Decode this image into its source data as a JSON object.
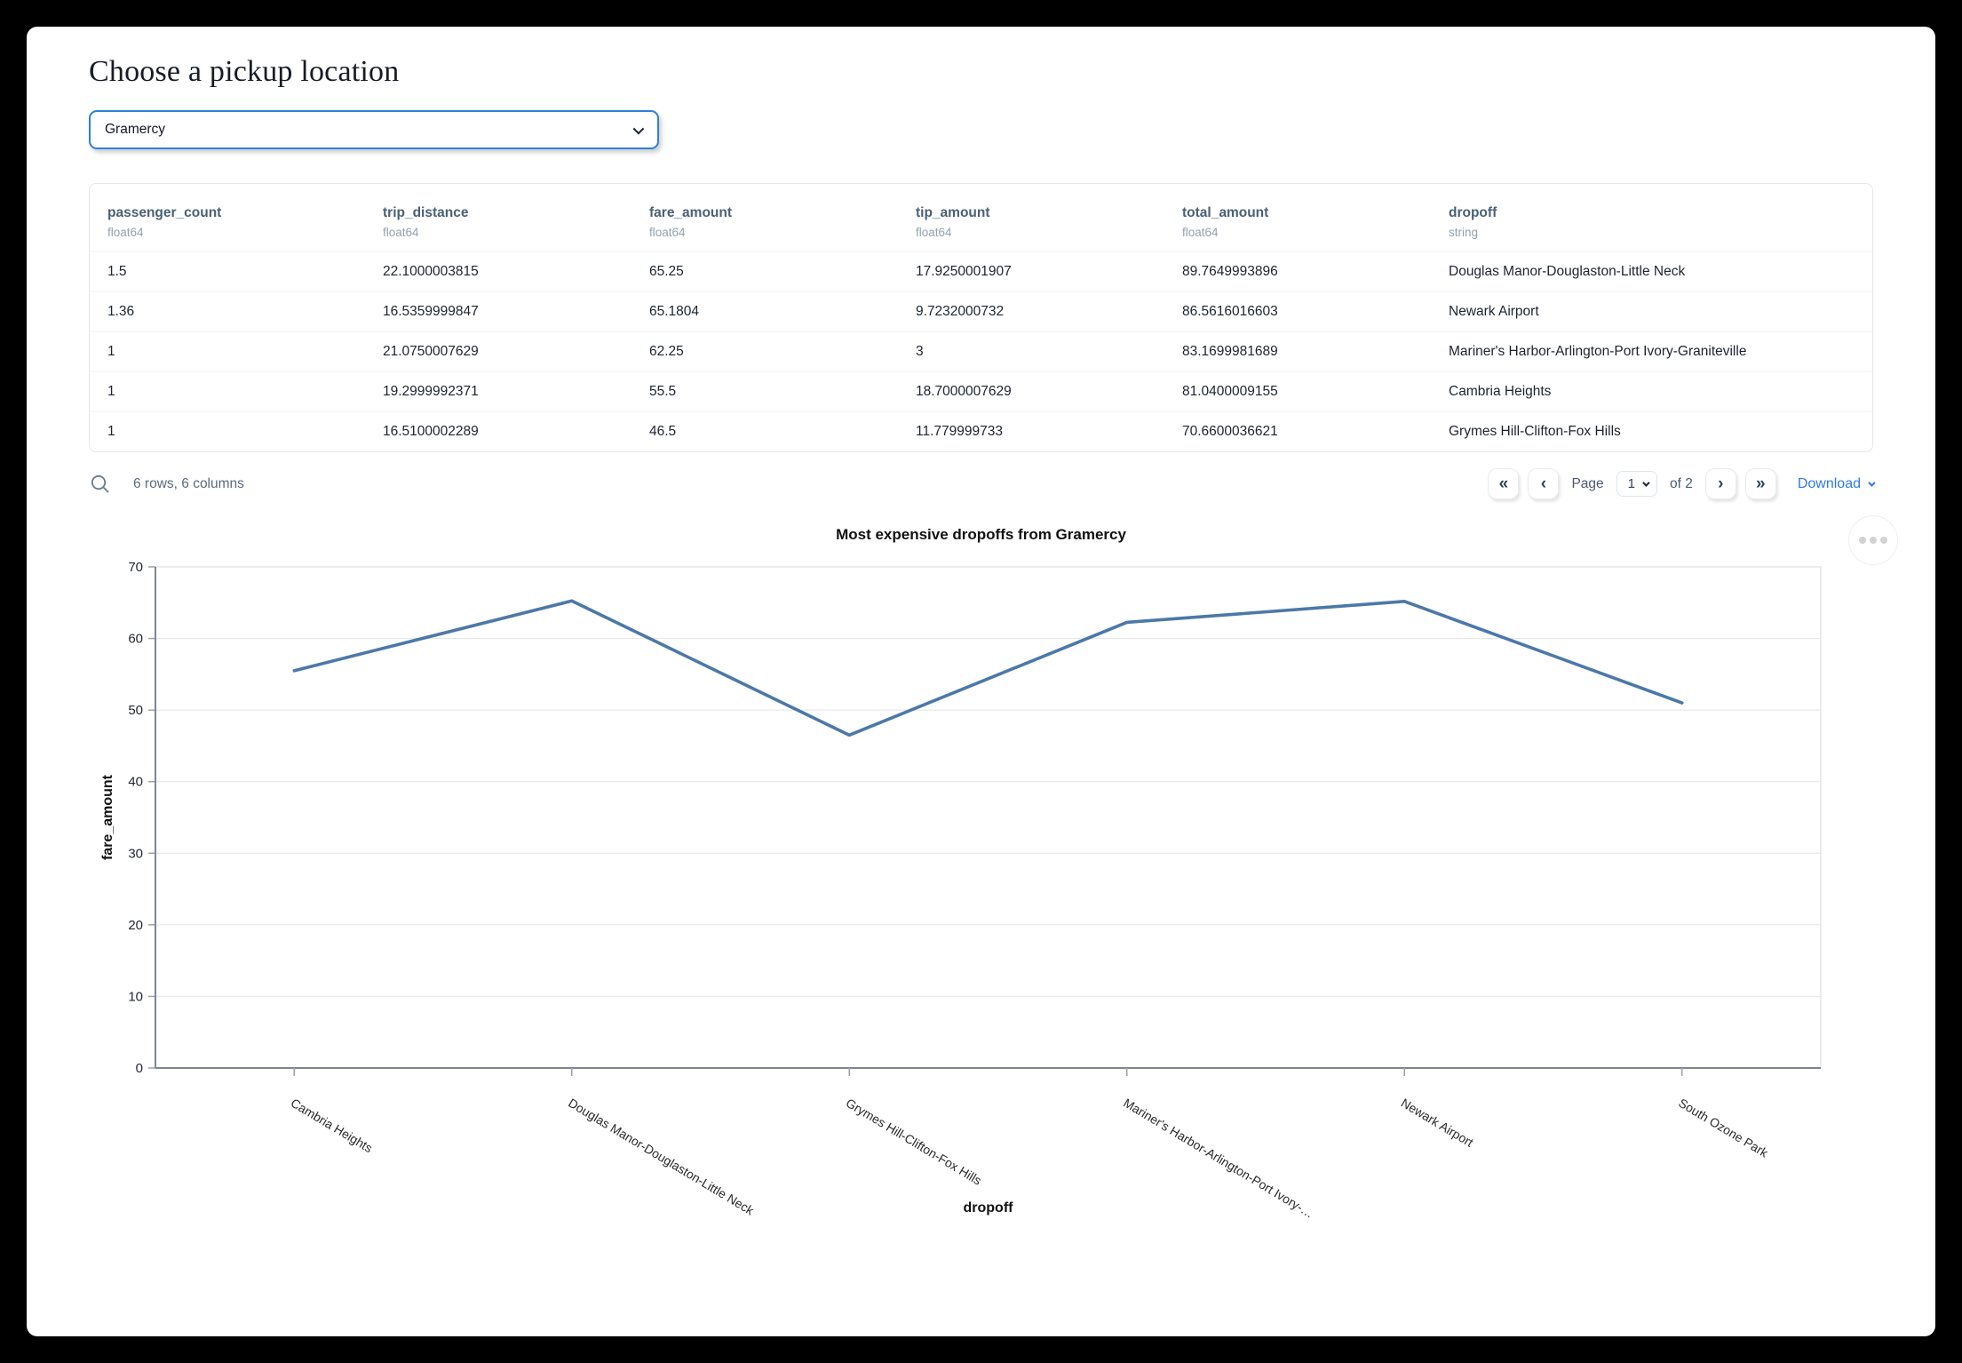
{
  "page": {
    "title": "Choose a pickup location"
  },
  "pickup_select": {
    "value": "Gramercy"
  },
  "table": {
    "columns": [
      {
        "name": "passenger_count",
        "type": "float64"
      },
      {
        "name": "trip_distance",
        "type": "float64"
      },
      {
        "name": "fare_amount",
        "type": "float64"
      },
      {
        "name": "tip_amount",
        "type": "float64"
      },
      {
        "name": "total_amount",
        "type": "float64"
      },
      {
        "name": "dropoff",
        "type": "string"
      }
    ],
    "rows": [
      [
        "1.5",
        "22.1000003815",
        "65.25",
        "17.9250001907",
        "89.7649993896",
        "Douglas Manor-Douglaston-Little Neck"
      ],
      [
        "1.36",
        "16.5359999847",
        "65.1804",
        "9.7232000732",
        "86.5616016603",
        "Newark Airport"
      ],
      [
        "1",
        "21.0750007629",
        "62.25",
        "3",
        "83.1699981689",
        "Mariner's Harbor-Arlington-Port Ivory-Graniteville"
      ],
      [
        "1",
        "19.2999992371",
        "55.5",
        "18.7000007629",
        "81.0400009155",
        "Cambria Heights"
      ],
      [
        "1",
        "16.5100002289",
        "46.5",
        "11.779999733",
        "70.6600036621",
        "Grymes Hill-Clifton-Fox Hills"
      ]
    ],
    "footer": {
      "summary": "6 rows, 6 columns",
      "page_label": "Page",
      "page_value": "1",
      "of_label": "of 2",
      "download_label": "Download",
      "pager": {
        "first": "«",
        "prev": "‹",
        "next": "›",
        "last": "»"
      }
    }
  },
  "chart_data": {
    "type": "line",
    "title": "Most expensive dropoffs from Gramercy",
    "categories": [
      "Cambria Heights",
      "Douglas Manor-Douglaston-Little Neck",
      "Grymes Hill-Clifton-Fox Hills",
      "Mariner's Harbor-Arlington-Port Ivory-…",
      "Newark Airport",
      "South Ozone Park"
    ],
    "values": [
      55.5,
      65.25,
      46.5,
      62.25,
      65.1804,
      51
    ],
    "xlabel": "dropoff",
    "ylabel": "fare_amount",
    "ylim": [
      0,
      70
    ],
    "yticks": [
      0,
      10,
      20,
      30,
      40,
      50,
      60,
      70
    ],
    "grid": true,
    "legend": "none",
    "line_color": "#4c78a8"
  },
  "colors": {
    "accent_blue": "#2f80d9",
    "link_blue": "#3178e6",
    "header_text": "#4a6076",
    "line": "#4c78a8"
  }
}
